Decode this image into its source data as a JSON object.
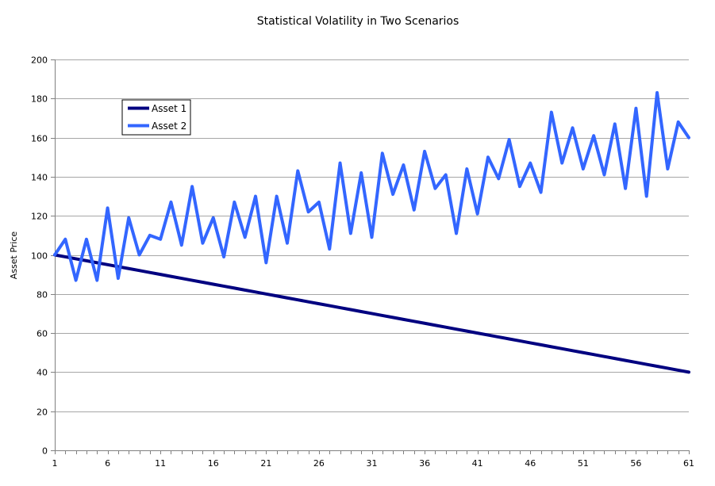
{
  "chart_data": {
    "type": "line",
    "title": "Statistical Volatility in Two Scenarios",
    "xlabel": "",
    "ylabel": "Asset Price",
    "ylim": [
      0,
      200
    ],
    "yticks": [
      0,
      20,
      40,
      60,
      80,
      100,
      120,
      140,
      160,
      180,
      200
    ],
    "xlim": [
      1,
      61
    ],
    "xticks": [
      1,
      6,
      11,
      16,
      21,
      26,
      31,
      36,
      41,
      46,
      51,
      56,
      61
    ],
    "grid": true,
    "legend_position": "top-left",
    "series": [
      {
        "name": "Asset 1",
        "color": "#000080",
        "values": [
          100,
          99,
          98,
          97,
          96,
          95,
          94,
          93,
          92,
          91,
          90,
          89,
          88,
          87,
          86,
          85,
          84,
          83,
          82,
          81,
          80,
          79,
          78,
          77,
          76,
          75,
          74,
          73,
          72,
          71,
          70,
          69,
          68,
          67,
          66,
          65,
          64,
          63,
          62,
          61,
          60,
          59,
          58,
          57,
          56,
          55,
          54,
          53,
          52,
          51,
          50,
          49,
          48,
          47,
          46,
          45,
          44,
          43,
          42,
          41,
          40
        ]
      },
      {
        "name": "Asset 2",
        "color": "#3366FF",
        "values": [
          100,
          108,
          87,
          108,
          87,
          124,
          88,
          119,
          100,
          110,
          108,
          127,
          105,
          135,
          106,
          119,
          99,
          127,
          109,
          130,
          96,
          130,
          106,
          143,
          122,
          127,
          103,
          147,
          111,
          142,
          109,
          152,
          131,
          146,
          123,
          153,
          134,
          141,
          111,
          144,
          121,
          150,
          139,
          159,
          135,
          147,
          132,
          173,
          147,
          165,
          144,
          161,
          141,
          167,
          134,
          175,
          130,
          183,
          144,
          168,
          160
        ]
      }
    ]
  }
}
